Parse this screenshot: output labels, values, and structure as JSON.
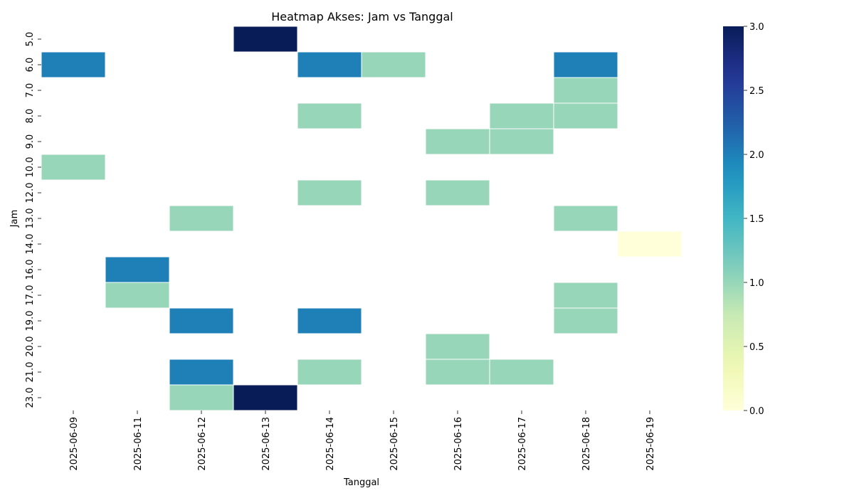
{
  "chart_data": {
    "type": "heatmap",
    "title": "Heatmap Akses: Jam vs Tanggal",
    "xlabel": "Tanggal",
    "ylabel": "Jam",
    "x_categories": [
      "2025-06-09",
      "2025-06-11",
      "2025-06-12",
      "2025-06-13",
      "2025-06-14",
      "2025-06-15",
      "2025-06-16",
      "2025-06-17",
      "2025-06-18",
      "2025-06-19"
    ],
    "y_categories": [
      "5.0",
      "6.0",
      "7.0",
      "8.0",
      "9.0",
      "10.0",
      "12.0",
      "13.0",
      "14.0",
      "16.0",
      "17.0",
      "19.0",
      "20.0",
      "21.0",
      "23.0"
    ],
    "values": [
      [
        null,
        null,
        null,
        3,
        null,
        null,
        null,
        null,
        null,
        null
      ],
      [
        2,
        null,
        null,
        null,
        2,
        1,
        null,
        null,
        2,
        null
      ],
      [
        null,
        null,
        null,
        null,
        null,
        null,
        null,
        null,
        1,
        null
      ],
      [
        null,
        null,
        null,
        null,
        1,
        null,
        null,
        1,
        1,
        null
      ],
      [
        null,
        null,
        null,
        null,
        null,
        null,
        1,
        1,
        null,
        null
      ],
      [
        1,
        null,
        null,
        null,
        null,
        null,
        null,
        null,
        null,
        null
      ],
      [
        null,
        null,
        null,
        null,
        1,
        null,
        1,
        null,
        null,
        null
      ],
      [
        null,
        null,
        1,
        null,
        null,
        null,
        null,
        null,
        1,
        null
      ],
      [
        null,
        null,
        null,
        null,
        null,
        null,
        null,
        null,
        null,
        0
      ],
      [
        null,
        2,
        null,
        null,
        null,
        null,
        null,
        null,
        null,
        null
      ],
      [
        null,
        1,
        null,
        null,
        null,
        null,
        null,
        null,
        1,
        null
      ],
      [
        null,
        null,
        2,
        null,
        2,
        null,
        null,
        null,
        1,
        null
      ],
      [
        null,
        null,
        null,
        null,
        null,
        null,
        1,
        null,
        null,
        null
      ],
      [
        null,
        null,
        2,
        null,
        1,
        null,
        1,
        1,
        null,
        null
      ],
      [
        null,
        null,
        1,
        3,
        null,
        null,
        null,
        null,
        null,
        null
      ]
    ],
    "colorbar": {
      "min": 0,
      "max": 3,
      "ticks": [
        "0.0",
        "0.5",
        "1.0",
        "1.5",
        "2.0",
        "2.5",
        "3.0"
      ],
      "colormap": "YlGnBu"
    },
    "grid": false
  }
}
